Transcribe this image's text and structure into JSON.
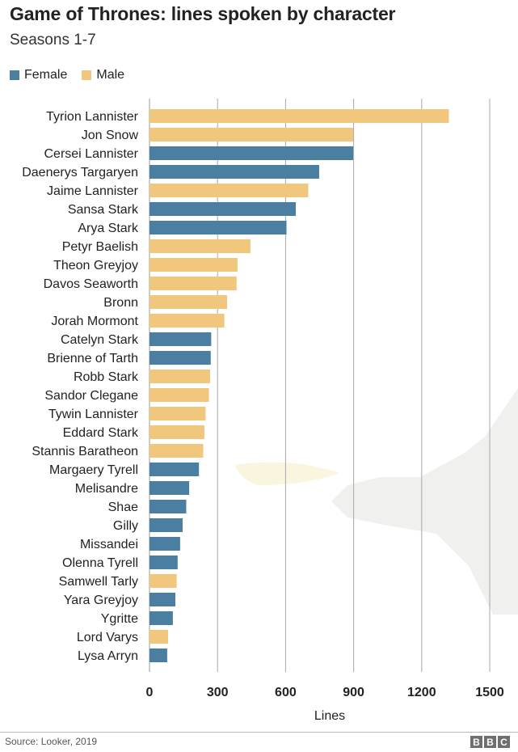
{
  "header": {
    "title": "Game of Thrones: lines spoken by character",
    "subtitle": "Seasons 1-7"
  },
  "legend": [
    {
      "label": "Female",
      "color": "#4a7fa1"
    },
    {
      "label": "Male",
      "color": "#f0c77c"
    }
  ],
  "chart_data": {
    "type": "bar",
    "orientation": "horizontal",
    "title": "Game of Thrones: lines spoken by character",
    "subtitle": "Seasons 1-7",
    "xlabel": "Lines",
    "ylabel": "",
    "xlim": [
      0,
      1500
    ],
    "xticks": [
      0,
      300,
      600,
      900,
      1200,
      1500
    ],
    "grid": true,
    "legend_position": "top-left",
    "categories": [
      "Tyrion Lannister",
      "Jon Snow",
      "Cersei Lannister",
      "Daenerys Targaryen",
      "Jaime Lannister",
      "Sansa Stark",
      "Arya Stark",
      "Petyr Baelish",
      "Theon Greyjoy",
      "Davos Seaworth",
      "Bronn",
      "Jorah Mormont",
      "Catelyn Stark",
      "Brienne of Tarth",
      "Robb Stark",
      "Sandor Clegane",
      "Tywin Lannister",
      "Eddard Stark",
      "Stannis Baratheon",
      "Margaery Tyrell",
      "Melisandre",
      "Shae",
      "Gilly",
      "Missandei",
      "Olenna Tyrell",
      "Samwell Tarly",
      "Yara Greyjoy",
      "Ygritte",
      "Lord Varys",
      "Lysa Arryn"
    ],
    "values": [
      1320,
      898,
      898,
      748,
      700,
      645,
      604,
      445,
      388,
      384,
      342,
      330,
      272,
      270,
      267,
      262,
      247,
      242,
      237,
      218,
      175,
      162,
      146,
      135,
      124,
      120,
      114,
      103,
      82,
      78
    ],
    "genders": [
      "Male",
      "Male",
      "Female",
      "Female",
      "Male",
      "Female",
      "Female",
      "Male",
      "Male",
      "Male",
      "Male",
      "Male",
      "Female",
      "Female",
      "Male",
      "Male",
      "Male",
      "Male",
      "Male",
      "Female",
      "Female",
      "Female",
      "Female",
      "Female",
      "Female",
      "Male",
      "Female",
      "Female",
      "Male",
      "Female"
    ],
    "colors": {
      "Female": "#4a7fa1",
      "Male": "#f0c77c"
    }
  },
  "footer": {
    "source": "Source: Looker, 2019",
    "logo_letters": [
      "B",
      "B",
      "C"
    ]
  }
}
